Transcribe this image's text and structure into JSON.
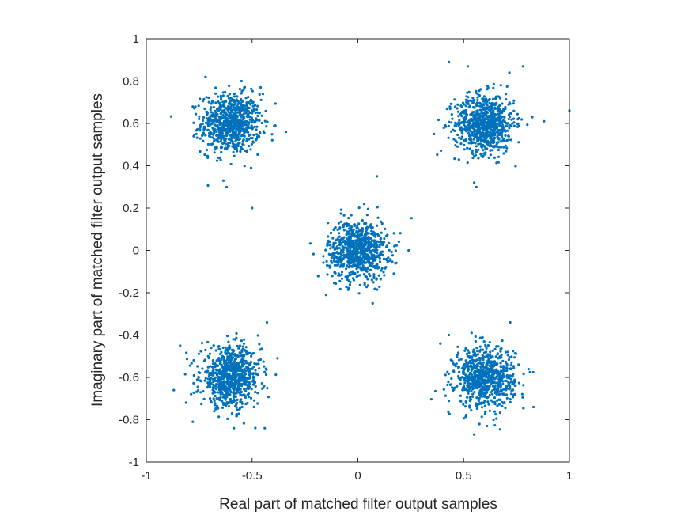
{
  "chart_data": {
    "type": "scatter",
    "title": "",
    "xlabel": "Real part of matched filter output samples",
    "ylabel": "Imaginary part of matched filter output samples",
    "xlim": [
      -1,
      1
    ],
    "ylim": [
      -1,
      1
    ],
    "xticks": [
      -1,
      -0.5,
      0,
      0.5,
      1
    ],
    "yticks": [
      -1,
      -0.8,
      -0.6,
      -0.4,
      -0.2,
      0,
      0.2,
      0.4,
      0.6,
      0.8,
      1
    ],
    "xtick_labels": [
      "-1",
      "-0.5",
      "0",
      "0.5",
      "1"
    ],
    "ytick_labels": [
      "-1",
      "-0.8",
      "-0.6",
      "-0.4",
      "-0.2",
      "0",
      "0.2",
      "0.4",
      "0.6",
      "0.8",
      "1"
    ],
    "grid": false,
    "box": true,
    "marker_color": "#0072BD",
    "axis_color": "#262626",
    "clusters": [
      {
        "center": [
          -0.6,
          0.6
        ],
        "points": 800,
        "spread": 0.07
      },
      {
        "center": [
          0.6,
          0.6
        ],
        "points": 800,
        "spread": 0.07
      },
      {
        "center": [
          0.0,
          0.0
        ],
        "points": 800,
        "spread": 0.07
      },
      {
        "center": [
          -0.6,
          -0.6
        ],
        "points": 800,
        "spread": 0.07
      },
      {
        "center": [
          0.6,
          -0.6
        ],
        "points": 800,
        "spread": 0.07
      }
    ],
    "series": [
      {
        "values": [
          [
            -0.5,
            0.2
          ],
          [
            -0.62,
            0.3
          ],
          [
            -0.72,
            0.82
          ],
          [
            -0.55,
            0.8
          ],
          [
            -0.46,
            0.77
          ],
          [
            -0.34,
            0.56
          ],
          [
            0.43,
            0.89
          ],
          [
            0.52,
            0.87
          ],
          [
            0.78,
            0.87
          ],
          [
            0.88,
            0.61
          ],
          [
            1.0,
            0.66
          ],
          [
            0.55,
            0.32
          ],
          [
            0.56,
            0.3
          ],
          [
            0.36,
            0.55
          ],
          [
            0.09,
            0.35
          ],
          [
            0.03,
            0.22
          ],
          [
            0.24,
            0.0
          ],
          [
            0.17,
            -0.11
          ],
          [
            -0.15,
            -0.21
          ],
          [
            0.07,
            -0.25
          ],
          [
            -0.87,
            -0.66
          ],
          [
            -0.84,
            -0.45
          ],
          [
            -0.78,
            -0.81
          ],
          [
            -0.44,
            -0.84
          ],
          [
            -0.43,
            -0.34
          ],
          [
            -0.38,
            -0.51
          ],
          [
            0.39,
            -0.44
          ],
          [
            0.43,
            -0.4
          ],
          [
            0.72,
            -0.34
          ],
          [
            0.83,
            -0.74
          ],
          [
            0.55,
            -0.87
          ],
          [
            0.61,
            -0.83
          ]
        ]
      }
    ]
  }
}
